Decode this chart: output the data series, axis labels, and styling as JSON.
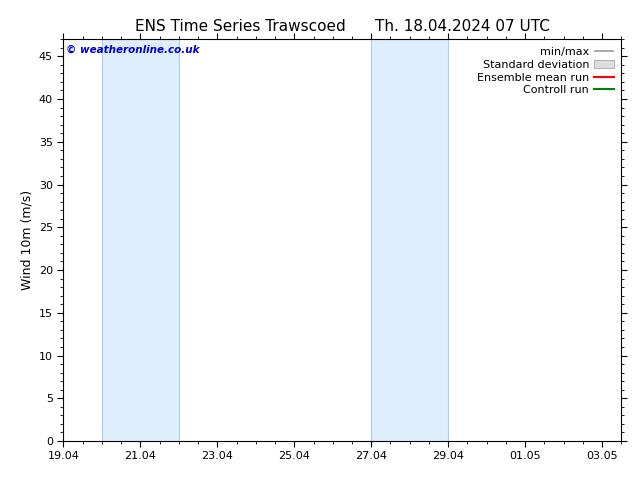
{
  "title_left": "ENS Time Series Trawscoed",
  "title_right": "Th. 18.04.2024 07 UTC",
  "ylabel": "Wind 10m (m/s)",
  "ylim": [
    0,
    47
  ],
  "yticks": [
    0,
    5,
    10,
    15,
    20,
    25,
    30,
    35,
    40,
    45
  ],
  "xtick_labels": [
    "19.04",
    "21.04",
    "23.04",
    "25.04",
    "27.04",
    "29.04",
    "01.05",
    "03.05"
  ],
  "xtick_positions": [
    0,
    2,
    4,
    6,
    8,
    10,
    12,
    14
  ],
  "xlim": [
    0,
    14.5
  ],
  "shaded_bands": [
    {
      "x_start": 1.0,
      "x_end": 3.0
    },
    {
      "x_start": 8.0,
      "x_end": 10.0
    }
  ],
  "band_color": "#ddeeff",
  "band_edge_color": "#aaccee",
  "copyright_text": "© weatheronline.co.uk",
  "copyright_color": "#0000cc",
  "legend_labels": [
    "min/max",
    "Standard deviation",
    "Ensemble mean run",
    "Controll run"
  ],
  "legend_colors_line": [
    "#999999",
    "#cccccc",
    "#ff0000",
    "#008000"
  ],
  "bg_color": "#ffffff",
  "title_fontsize": 11,
  "label_fontsize": 9,
  "tick_fontsize": 8,
  "legend_fontsize": 8
}
